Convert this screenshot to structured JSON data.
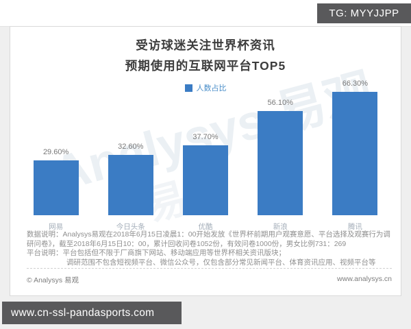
{
  "overlay": {
    "tg_label": "TG: MYYJJPP",
    "url_label": "www.cn-ssl-pandasports.com"
  },
  "chart_data": {
    "type": "bar",
    "title_line1": "受访球迷关注世界杯资讯",
    "title_line2": "预期使用的互联网平台TOP5",
    "legend": [
      {
        "label": "人数占比",
        "color": "#3b7cc4"
      }
    ],
    "legend_position": "top-center",
    "categories": [
      "网易",
      "今日头条",
      "优酷",
      "新浪",
      "腾讯"
    ],
    "values": [
      29.6,
      32.6,
      37.7,
      56.1,
      66.3
    ],
    "value_labels": [
      "29.60%",
      "32.60%",
      "37.70%",
      "56.10%",
      "66.30%"
    ],
    "xlabel": "",
    "ylabel": "",
    "ylim": [
      0,
      70
    ],
    "grid": false,
    "bar_color": "#3b7cc4"
  },
  "notes": {
    "data_note": "数据说明：Analysys易观在2018年6月15日凌晨1：00开始发放《世界杯前期用户观赛意愿、平台选择及观赛行为调研问卷》，截至2018年6月15日10：00，累计回收问卷1052份，有效问卷1000份，男女比例731：269",
    "platform_note_label": "平台说明：",
    "platform_note_line1": "平台包括但不限于厂商旗下网站、移动端应用等世界杯相关资讯版块；",
    "platform_note_line2": "调研范围不包含短视频平台、微信公众号，仅包含部分常见新闻平台、体育资讯应用、视频平台等"
  },
  "footer": {
    "copyright": "© Analysys 易观",
    "site": "www.analysys.cn"
  },
  "watermark": {
    "text1": "Analysys 易观",
    "text2": "易观"
  }
}
